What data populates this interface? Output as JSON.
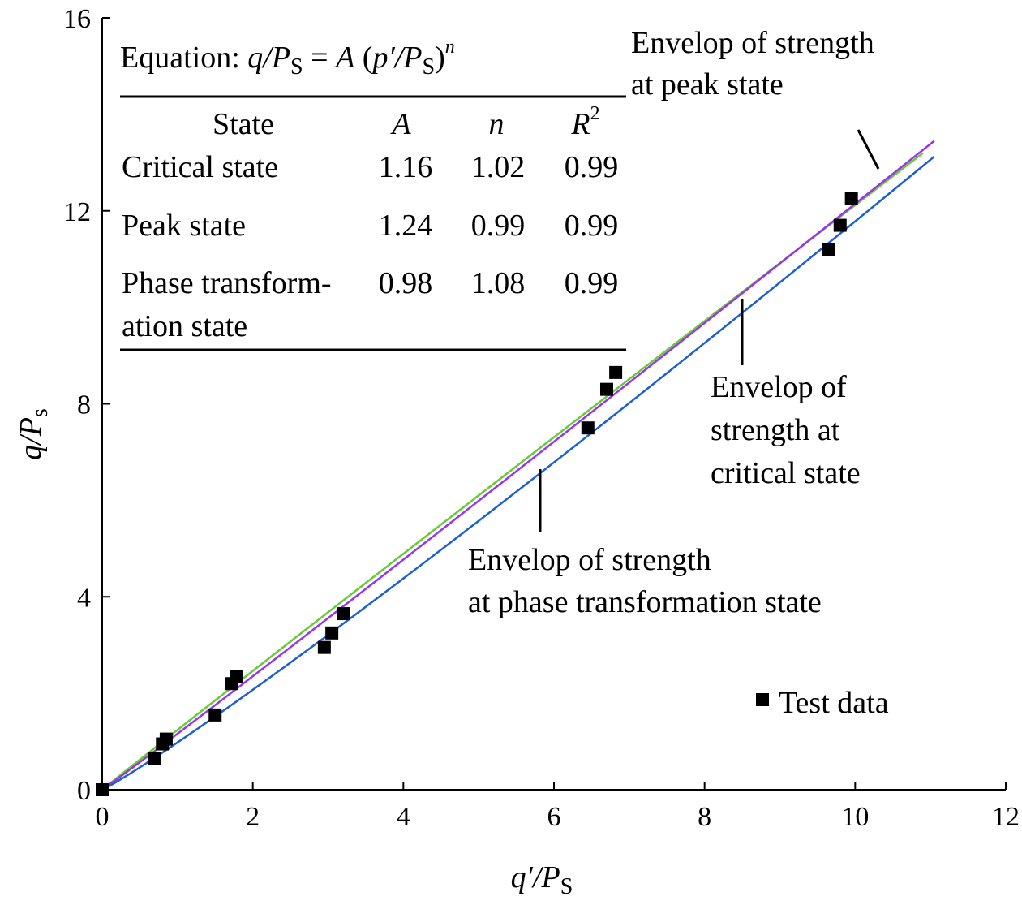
{
  "chart_data": {
    "type": "scatter",
    "x_label": {
      "base": "q′/P",
      "sub": "S"
    },
    "y_label": {
      "base": "q/P",
      "sub": "s"
    },
    "xlim": [
      0,
      12
    ],
    "ylim": [
      0,
      16
    ],
    "x_ticks": [
      0,
      2,
      4,
      6,
      8,
      10,
      12
    ],
    "y_ticks": [
      0,
      4,
      8,
      12,
      16
    ],
    "grid": false,
    "legend": {
      "position": "lower-right",
      "label": "Test data"
    },
    "points": [
      {
        "x": 0.0,
        "y": 0.0
      },
      {
        "x": 0.7,
        "y": 0.65
      },
      {
        "x": 0.8,
        "y": 0.95
      },
      {
        "x": 0.85,
        "y": 1.05
      },
      {
        "x": 1.5,
        "y": 1.55
      },
      {
        "x": 1.72,
        "y": 2.2
      },
      {
        "x": 1.78,
        "y": 2.35
      },
      {
        "x": 2.95,
        "y": 2.95
      },
      {
        "x": 3.05,
        "y": 3.25
      },
      {
        "x": 3.2,
        "y": 3.65
      },
      {
        "x": 6.45,
        "y": 7.5
      },
      {
        "x": 6.7,
        "y": 8.3
      },
      {
        "x": 6.82,
        "y": 8.65
      },
      {
        "x": 9.65,
        "y": 11.2
      },
      {
        "x": 9.8,
        "y": 11.7
      },
      {
        "x": 9.95,
        "y": 12.25
      }
    ],
    "series": [
      {
        "key": "peak",
        "A": 1.24,
        "n": 0.99,
        "x_max": 10.9,
        "color": "#66cc33"
      },
      {
        "key": "critical",
        "A": 1.16,
        "n": 1.02,
        "x_max": 11.05,
        "color": "#9933ee"
      },
      {
        "key": "phase",
        "A": 0.98,
        "n": 1.08,
        "x_max": 11.05,
        "color": "#1a5fd6"
      }
    ],
    "annotations": [
      {
        "key": "peak",
        "lines": [
          "Envelop of strength",
          "at peak state"
        ]
      },
      {
        "key": "critical",
        "lines": [
          "Envelop of",
          "strength at",
          "critical state"
        ]
      },
      {
        "key": "phase",
        "lines": [
          "Envelop of strength",
          "at phase transformation state"
        ]
      }
    ],
    "table": {
      "equation": {
        "prefix": "Equation: ",
        "q": "q",
        "slash": "/P",
        "sub": "S",
        "eq": " = ",
        "A": "A",
        "open": " (",
        "p": "p′",
        "slash2": "/P",
        "sub2": "S",
        "close": ")",
        "exp": "n"
      },
      "headers": {
        "state": "State",
        "A": "A",
        "n": "n",
        "R": "R",
        "R_sup": "2"
      },
      "rows": [
        {
          "state": [
            "Critical state"
          ],
          "A": "1.16",
          "n": "1.02",
          "R2": "0.99"
        },
        {
          "state": [
            "Peak state"
          ],
          "A": "1.24",
          "n": "0.99",
          "R2": "0.99"
        },
        {
          "state": [
            "Phase transform-",
            "ation state"
          ],
          "A": "0.98",
          "n": "1.08",
          "R2": "0.99"
        }
      ]
    }
  }
}
